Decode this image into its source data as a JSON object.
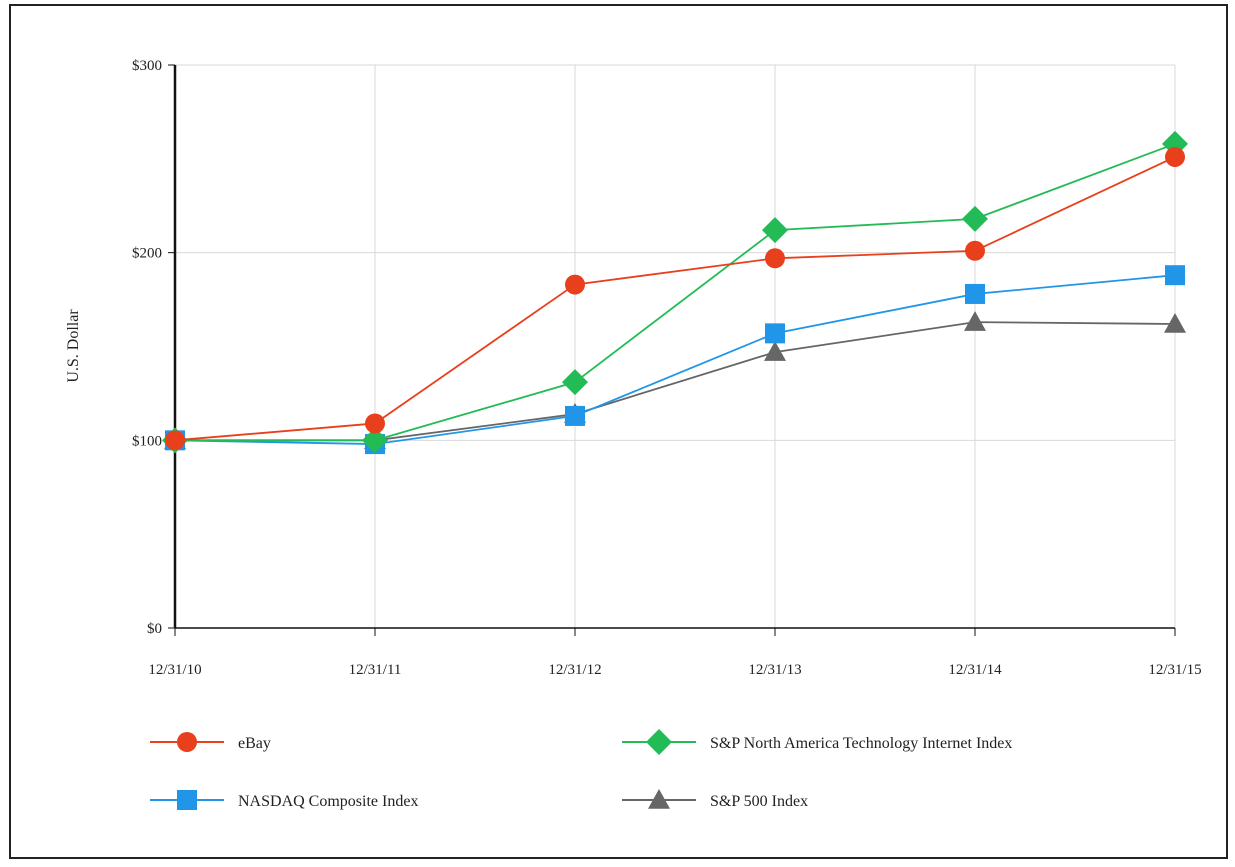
{
  "chart_data": {
    "type": "line",
    "title": "",
    "xlabel": "",
    "ylabel": "U.S. Dollar",
    "categories": [
      "12/31/10",
      "12/31/11",
      "12/31/12",
      "12/31/13",
      "12/31/14",
      "12/31/15"
    ],
    "ylim": [
      0,
      300
    ],
    "y_ticks": [
      0,
      100,
      200,
      300
    ],
    "y_tick_labels": [
      "$0",
      "$100",
      "$200",
      "$300"
    ],
    "grid": true,
    "legend_position": "bottom",
    "series": [
      {
        "name": "eBay",
        "marker": "circle",
        "color": "#e8401c",
        "values": [
          100,
          109,
          183,
          197,
          201,
          251
        ]
      },
      {
        "name": "S&P North America Technology Internet Index",
        "marker": "diamond",
        "color": "#22bb55",
        "values": [
          100,
          100,
          131,
          212,
          218,
          258
        ]
      },
      {
        "name": "NASDAQ Composite Index",
        "marker": "square",
        "color": "#2196e8",
        "values": [
          100,
          98,
          113,
          157,
          178,
          188
        ]
      },
      {
        "name": "S&P 500 Index",
        "marker": "triangle",
        "color": "#666666",
        "values": [
          100,
          100,
          114,
          147,
          163,
          162
        ]
      }
    ]
  }
}
